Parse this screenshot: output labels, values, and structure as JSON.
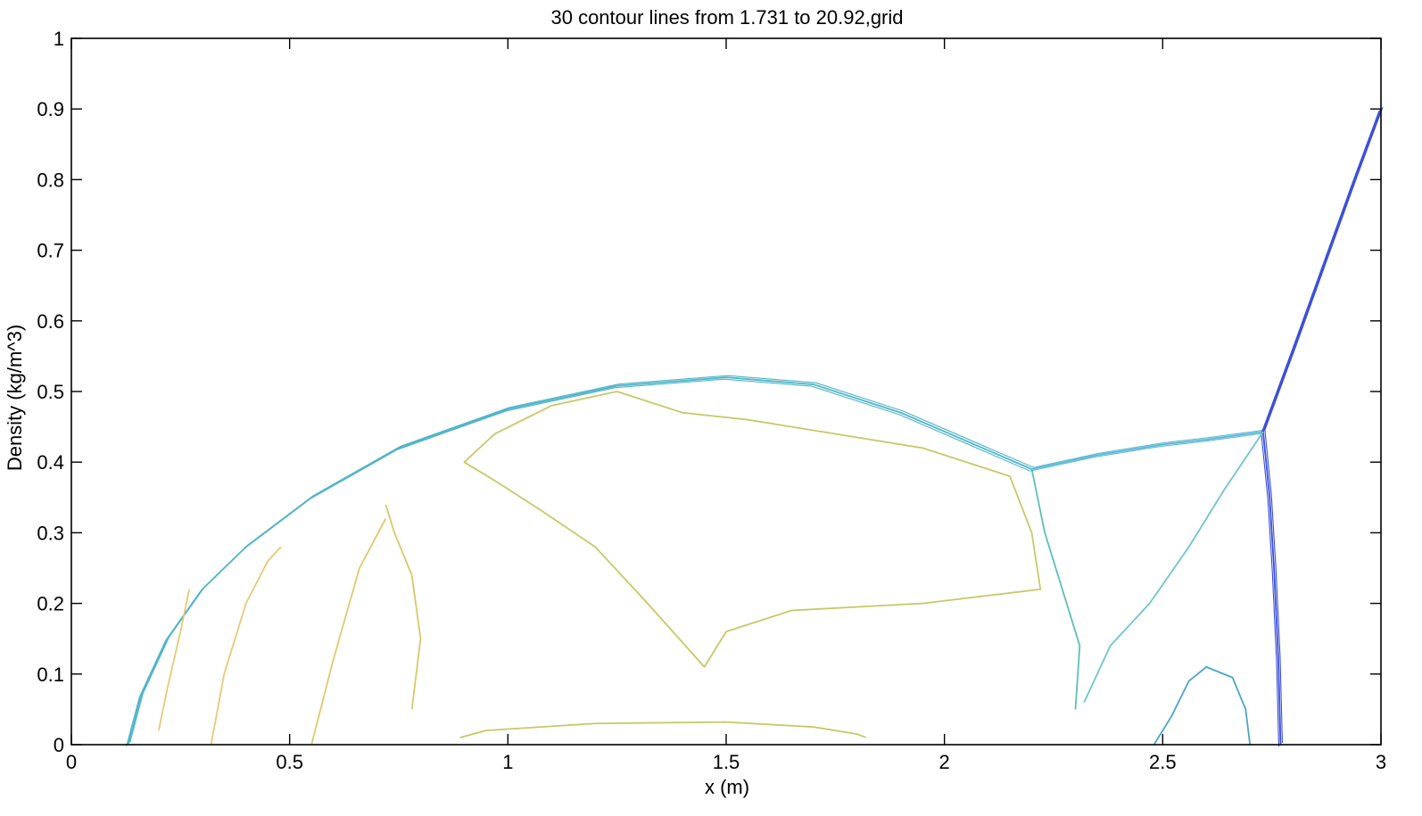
{
  "chart_data": {
    "type": "contour",
    "title": "30 contour lines from 1.731 to 20.92,grid",
    "xlabel": "x (m)",
    "ylabel": "Density (kg/m^3)",
    "xlim": [
      0,
      3
    ],
    "ylim": [
      0,
      1
    ],
    "x_ticks": [
      0,
      0.5,
      1,
      1.5,
      2,
      2.5,
      3
    ],
    "x_tick_labels": [
      "0",
      "0.5",
      "1",
      "1.5",
      "2",
      "2.5",
      "3"
    ],
    "y_ticks": [
      0,
      0.1,
      0.2,
      0.3,
      0.4,
      0.5,
      0.6,
      0.7,
      0.8,
      0.9,
      1
    ],
    "y_tick_labels": [
      "0",
      "0.1",
      "0.2",
      "0.3",
      "0.4",
      "0.5",
      "0.6",
      "0.7",
      "0.8",
      "0.9",
      "1"
    ],
    "grid": false,
    "contour_levels": {
      "count": 30,
      "min": 1.731,
      "max": 20.92
    },
    "features": [
      {
        "name": "bow-shock",
        "color": "#4fb4c8",
        "points": [
          [
            0.13,
            0
          ],
          [
            0.16,
            0.07
          ],
          [
            0.22,
            0.15
          ],
          [
            0.3,
            0.22
          ],
          [
            0.4,
            0.28
          ],
          [
            0.55,
            0.35
          ],
          [
            0.75,
            0.42
          ],
          [
            1.0,
            0.475
          ],
          [
            1.25,
            0.508
          ],
          [
            1.5,
            0.52
          ],
          [
            1.7,
            0.51
          ],
          [
            1.9,
            0.47
          ],
          [
            2.05,
            0.43
          ],
          [
            2.2,
            0.39
          ]
        ]
      },
      {
        "name": "reflected-shock-upper",
        "color": "#5cb8d6",
        "points": [
          [
            2.2,
            0.39
          ],
          [
            2.35,
            0.41
          ],
          [
            2.5,
            0.425
          ],
          [
            2.6,
            0.432
          ],
          [
            2.73,
            0.443
          ]
        ]
      },
      {
        "name": "incident-shock",
        "color": "#3b4fd8",
        "points": [
          [
            2.73,
            0.443
          ],
          [
            2.8,
            0.56
          ],
          [
            2.87,
            0.68
          ],
          [
            2.94,
            0.8
          ],
          [
            3.0,
            0.9
          ]
        ]
      },
      {
        "name": "mach-stem",
        "color": "#3b4fd8",
        "points": [
          [
            2.73,
            0.443
          ],
          [
            2.745,
            0.35
          ],
          [
            2.755,
            0.25
          ],
          [
            2.765,
            0.12
          ],
          [
            2.77,
            0
          ]
        ]
      },
      {
        "name": "slip-line",
        "color": "#5bc0b4",
        "points": [
          [
            2.2,
            0.39
          ],
          [
            2.23,
            0.3
          ],
          [
            2.27,
            0.22
          ],
          [
            2.31,
            0.14
          ],
          [
            2.3,
            0.05
          ]
        ]
      },
      {
        "name": "reflected-wave-inner",
        "color": "#6ec4d2",
        "points": [
          [
            2.73,
            0.443
          ],
          [
            2.64,
            0.36
          ],
          [
            2.56,
            0.28
          ],
          [
            2.47,
            0.2
          ],
          [
            2.38,
            0.14
          ],
          [
            2.32,
            0.06
          ]
        ]
      },
      {
        "name": "interior-contour-large",
        "color": "#c8c868",
        "points": [
          [
            1.25,
            0.5
          ],
          [
            1.4,
            0.47
          ],
          [
            1.55,
            0.46
          ],
          [
            1.75,
            0.44
          ],
          [
            1.95,
            0.42
          ],
          [
            2.15,
            0.38
          ],
          [
            2.2,
            0.3
          ],
          [
            2.22,
            0.22
          ],
          [
            1.95,
            0.2
          ],
          [
            1.65,
            0.19
          ],
          [
            1.5,
            0.16
          ],
          [
            1.45,
            0.11
          ],
          [
            1.32,
            0.2
          ],
          [
            1.2,
            0.28
          ],
          [
            1.08,
            0.33
          ],
          [
            0.98,
            0.37
          ],
          [
            0.9,
            0.4
          ],
          [
            0.97,
            0.44
          ],
          [
            1.1,
            0.48
          ],
          [
            1.25,
            0.5
          ]
        ]
      },
      {
        "name": "bottom-contour",
        "color": "#c8c868",
        "points": [
          [
            0.89,
            0.01
          ],
          [
            0.95,
            0.02
          ],
          [
            1.2,
            0.03
          ],
          [
            1.5,
            0.032
          ],
          [
            1.7,
            0.025
          ],
          [
            1.8,
            0.015
          ],
          [
            1.82,
            0.01
          ]
        ]
      },
      {
        "name": "vortex-contour",
        "color": "#4aa6c8",
        "points": [
          [
            2.48,
            0
          ],
          [
            2.52,
            0.04
          ],
          [
            2.56,
            0.09
          ],
          [
            2.6,
            0.11
          ],
          [
            2.66,
            0.095
          ],
          [
            2.69,
            0.05
          ],
          [
            2.7,
            0
          ]
        ]
      },
      {
        "name": "left-striation-1",
        "color": "#e8c878",
        "points": [
          [
            0.2,
            0.02
          ],
          [
            0.22,
            0.08
          ],
          [
            0.25,
            0.16
          ],
          [
            0.27,
            0.22
          ]
        ]
      },
      {
        "name": "left-striation-2",
        "color": "#e8c878",
        "points": [
          [
            0.32,
            0.0
          ],
          [
            0.35,
            0.1
          ],
          [
            0.4,
            0.2
          ],
          [
            0.45,
            0.26
          ],
          [
            0.48,
            0.28
          ]
        ]
      },
      {
        "name": "left-striation-3",
        "color": "#e0c870",
        "points": [
          [
            0.55,
            0.0
          ],
          [
            0.6,
            0.12
          ],
          [
            0.66,
            0.25
          ],
          [
            0.72,
            0.32
          ]
        ]
      },
      {
        "name": "left-striation-4",
        "color": "#d8c868",
        "points": [
          [
            0.78,
            0.05
          ],
          [
            0.8,
            0.15
          ],
          [
            0.78,
            0.24
          ],
          [
            0.74,
            0.3
          ],
          [
            0.72,
            0.34
          ]
        ]
      }
    ]
  }
}
